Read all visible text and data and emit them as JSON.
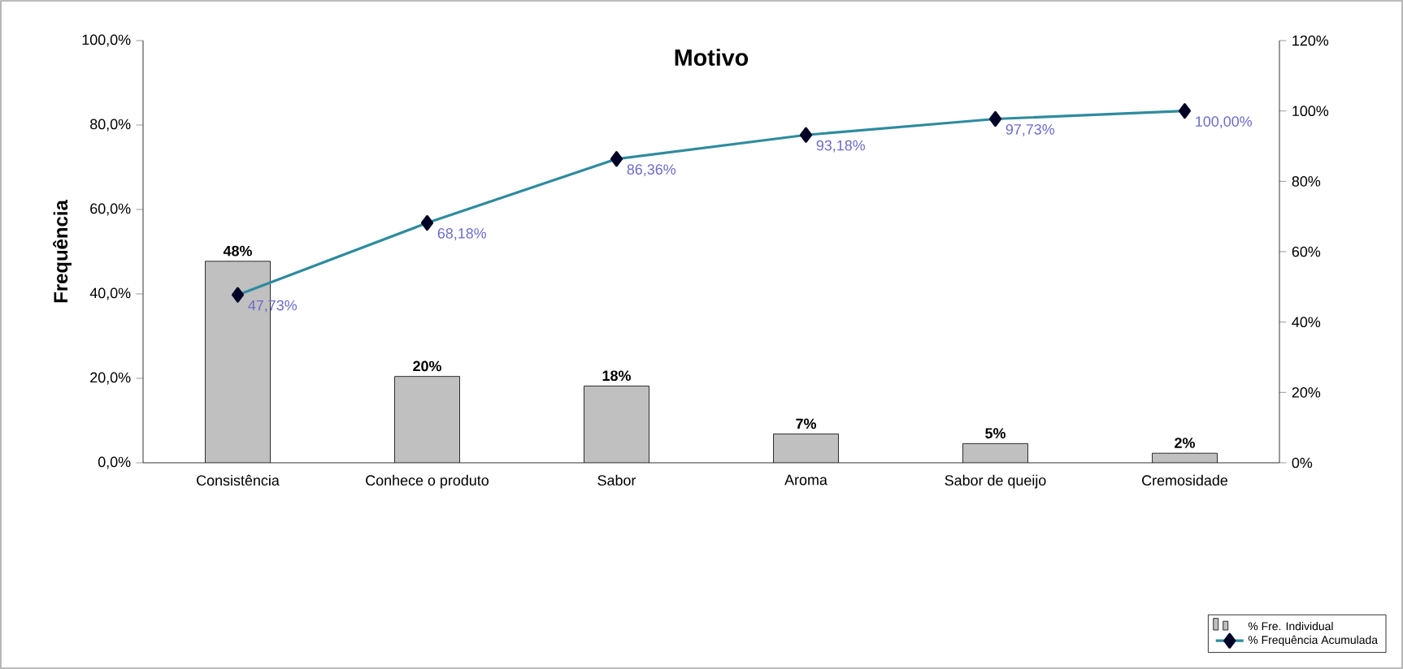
{
  "chart_data": {
    "type": "bar",
    "title": "Motivo",
    "ylabel": "Frequência",
    "categories": [
      "Consistência",
      "Conhece o produto",
      "Sabor",
      "Aroma",
      "Sabor de queijo",
      "Cremosidade"
    ],
    "series": [
      {
        "name": "% Fre. Individual",
        "color": "#c0c0c0",
        "values": [
          47.73,
          20.45,
          18.18,
          6.82,
          4.55,
          2.27
        ],
        "value_labels": [
          "48%",
          "20%",
          "18%",
          "7%",
          "5%",
          "2%"
        ]
      },
      {
        "name": "% Frequência Acumulada",
        "type": "line",
        "axis": "y2",
        "color": "#2e8b9e",
        "marker": "diamond",
        "line_style": "solid",
        "values": [
          47.73,
          68.18,
          86.36,
          93.18,
          97.73,
          100.0
        ],
        "value_labels": [
          "47,73%",
          "68,18%",
          "86,36%",
          "93,18%",
          "97,73%",
          "100,00%"
        ]
      }
    ],
    "ylim": [
      0,
      100
    ],
    "yticks": [
      {
        "value": 0,
        "label": "0,0%"
      },
      {
        "value": 20,
        "label": "20,0%"
      },
      {
        "value": 40,
        "label": "40,0%"
      },
      {
        "value": 60,
        "label": "60,0%"
      },
      {
        "value": 80,
        "label": "80,0%"
      },
      {
        "value": 100,
        "label": "100,0%"
      }
    ],
    "y2lim": [
      0,
      120
    ],
    "y2ticks": [
      {
        "value": 0,
        "label": "0%"
      },
      {
        "value": 20,
        "label": "20%"
      },
      {
        "value": 40,
        "label": "40%"
      },
      {
        "value": 60,
        "label": "60%"
      },
      {
        "value": 80,
        "label": "80%"
      },
      {
        "value": 100,
        "label": "100%"
      },
      {
        "value": 120,
        "label": "120%"
      }
    ],
    "legend": "bottom right"
  }
}
